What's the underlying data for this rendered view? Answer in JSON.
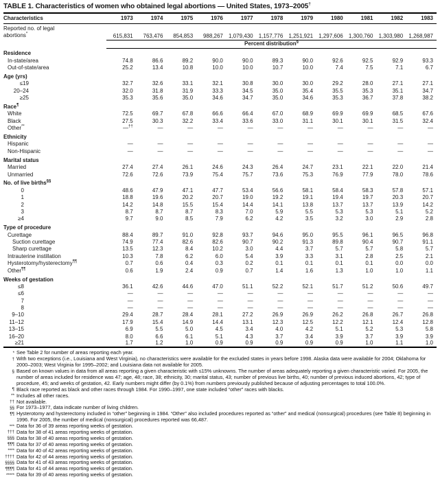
{
  "title": {
    "text": "TABLE 1. Characteristics of women who obtained legal abortions — United States, 1973–2005",
    "marker": "†"
  },
  "colors": {
    "background": "#ffffff",
    "text": "#1a1a1a",
    "rule": "#000000"
  },
  "table": {
    "characteristics_label": "Characteristics",
    "years": [
      "1973",
      "1974",
      "1975",
      "1976",
      "1977",
      "1978",
      "1979",
      "1980",
      "1981",
      "1982",
      "1983"
    ],
    "reported": {
      "label": "Reported no. of legal abortions",
      "marker": "*",
      "values": [
        "615,831",
        "763,476",
        "854,853",
        "988,267",
        "1,079,430",
        "1,157,776",
        "1,251,921",
        "1,297,606",
        "1,300,760",
        "1,303,980",
        "1,268,987"
      ]
    },
    "percent_header": {
      "text": "Percent distribution",
      "marker": "§"
    },
    "sections": [
      {
        "label": "Residence",
        "marker": "",
        "rows": [
          {
            "label": "In-state/area",
            "marker": "",
            "style": "l1",
            "values": [
              "74.8",
              "86.6",
              "89.2",
              "90.0",
              "90.0",
              "89.3",
              "90.0",
              "92.6",
              "92.5",
              "92.9",
              "93.3"
            ]
          },
          {
            "label": "Out-of-state/area",
            "marker": "",
            "style": "l1",
            "values": [
              "25.2",
              "13.4",
              "10.8",
              "10.0",
              "10.0",
              "10.7",
              "10.0",
              "7.4",
              "7.5",
              "7.1",
              "6.7"
            ]
          }
        ]
      },
      {
        "label": "Age (yrs)",
        "marker": "",
        "rows": [
          {
            "label": "≤19",
            "marker": "",
            "style": "r37",
            "values": [
              "32.7",
              "32.6",
              "33.1",
              "32.1",
              "30.8",
              "30.0",
              "30.0",
              "29.2",
              "28.0",
              "27.1",
              "27.1"
            ]
          },
          {
            "label": "20–24",
            "marker": "",
            "style": "r37",
            "values": [
              "32.0",
              "31.8",
              "31.9",
              "33.3",
              "34.5",
              "35.0",
              "35.4",
              "35.5",
              "35.3",
              "35.1",
              "34.7"
            ]
          },
          {
            "label": "≥25",
            "marker": "",
            "style": "r37",
            "values": [
              "35.3",
              "35.6",
              "35.0",
              "34.6",
              "34.7",
              "35.0",
              "34.6",
              "35.3",
              "36.7",
              "37.8",
              "38.2"
            ]
          }
        ]
      },
      {
        "label": "Race",
        "marker": "¶",
        "rows": [
          {
            "label": "White",
            "marker": "",
            "style": "l1",
            "values": [
              "72.5",
              "69.7",
              "67.8",
              "66.6",
              "66.4",
              "67.0",
              "68.9",
              "69.9",
              "69.9",
              "68.5",
              "67.6"
            ]
          },
          {
            "label": "Black",
            "marker": "",
            "style": "l1",
            "values": [
              "27.5",
              "30.3",
              "32.2",
              "33.4",
              "33.6",
              "33.0",
              "31.1",
              "30.1",
              "30.1",
              "31.5",
              "32.4"
            ]
          },
          {
            "label": "Other",
            "marker": "**",
            "style": "l1",
            "values": [
              "—",
              "—",
              "—",
              "—",
              "—",
              "—",
              "—",
              "—",
              "—",
              "—",
              "—"
            ],
            "value_sups": {
              "0": "††"
            }
          }
        ]
      },
      {
        "label": "Ethnicity",
        "marker": "",
        "rows": [
          {
            "label": "Hispanic",
            "marker": "",
            "style": "l1",
            "values": [
              "—",
              "—",
              "—",
              "—",
              "—",
              "—",
              "—",
              "—",
              "—",
              "—",
              "—"
            ]
          },
          {
            "label": "Non-Hispanic",
            "marker": "",
            "style": "l1",
            "values": [
              "—",
              "—",
              "—",
              "—",
              "—",
              "—",
              "—",
              "—",
              "—",
              "—",
              "—"
            ]
          }
        ]
      },
      {
        "label": "Marital status",
        "marker": "",
        "rows": [
          {
            "label": "Married",
            "marker": "",
            "style": "l1",
            "values": [
              "27.4",
              "27.4",
              "26.1",
              "24.6",
              "24.3",
              "26.4",
              "24.7",
              "23.1",
              "22.1",
              "22.0",
              "21.4"
            ]
          },
          {
            "label": "Unmarried",
            "marker": "",
            "style": "l1",
            "values": [
              "72.6",
              "72.6",
              "73.9",
              "75.4",
              "75.7",
              "73.6",
              "75.3",
              "76.9",
              "77.9",
              "78.0",
              "78.6"
            ]
          }
        ]
      },
      {
        "label": "No. of live births",
        "marker": "§§",
        "rows": [
          {
            "label": "0",
            "marker": "",
            "style": "r30",
            "values": [
              "48.6",
              "47.9",
              "47.1",
              "47.7",
              "53.4",
              "56.6",
              "58.1",
              "58.4",
              "58.3",
              "57.8",
              "57.1"
            ]
          },
          {
            "label": "1",
            "marker": "",
            "style": "r30",
            "values": [
              "18.8",
              "19.6",
              "20.2",
              "20.7",
              "19.0",
              "19.2",
              "19.1",
              "19.4",
              "19.7",
              "20.3",
              "20.7"
            ]
          },
          {
            "label": "2",
            "marker": "",
            "style": "r30",
            "values": [
              "14.2",
              "14.8",
              "15.5",
              "15.4",
              "14.4",
              "14.1",
              "13.8",
              "13.7",
              "13.7",
              "13.9",
              "14.2"
            ]
          },
          {
            "label": "3",
            "marker": "",
            "style": "r30",
            "values": [
              "8.7",
              "8.7",
              "8.7",
              "8.3",
              "7.0",
              "5.9",
              "5.5",
              "5.3",
              "5.3",
              "5.1",
              "5.2"
            ]
          },
          {
            "label": "≥4",
            "marker": "",
            "style": "r30",
            "values": [
              "9.7",
              "9.0",
              "8.5",
              "7.9",
              "6.2",
              "4.2",
              "3.5",
              "3.2",
              "3.0",
              "2.9",
              "2.8"
            ]
          }
        ]
      },
      {
        "label": "Type of procedure",
        "marker": "",
        "rows": [
          {
            "label": "Curettage",
            "marker": "",
            "style": "l1",
            "values": [
              "88.4",
              "89.7",
              "91.0",
              "92.8",
              "93.7",
              "94.6",
              "95.0",
              "95.5",
              "96.1",
              "96.5",
              "96.8"
            ]
          },
          {
            "label": "Suction curettage",
            "marker": "",
            "style": "l2",
            "values": [
              "74.9",
              "77.4",
              "82.6",
              "82.6",
              "90.7",
              "90.2",
              "91.3",
              "89.8",
              "90.4",
              "90.7",
              "91.1"
            ]
          },
          {
            "label": "Sharp curettage",
            "marker": "",
            "style": "l2",
            "values": [
              "13.5",
              "12.3",
              "8.4",
              "10.2",
              "3.0",
              "4.4",
              "3.7",
              "5.7",
              "5.7",
              "5.8",
              "5.7"
            ]
          },
          {
            "label": "Intrauterine instillation",
            "marker": "",
            "style": "l1",
            "values": [
              "10.3",
              "7.8",
              "6.2",
              "6.0",
              "5.4",
              "3.9",
              "3.3",
              "3.1",
              "2.8",
              "2.5",
              "2.1"
            ]
          },
          {
            "label": "Hysterotomy/hysterectomy",
            "marker": "¶¶",
            "style": "l1",
            "values": [
              "0.7",
              "0.6",
              "0.4",
              "0.3",
              "0.2",
              "0.1",
              "0.1",
              "0.1",
              "0.1",
              "0.0",
              "0.0"
            ]
          },
          {
            "label": "Other",
            "marker": "¶¶",
            "style": "l1",
            "values": [
              "0.6",
              "1.9",
              "2.4",
              "0.9",
              "0.7",
              "1.4",
              "1.6",
              "1.3",
              "1.0",
              "1.0",
              "1.1"
            ]
          }
        ]
      },
      {
        "label": "Weeks of gestation",
        "marker": "",
        "rows": [
          {
            "label": "≤8",
            "marker": "",
            "style": "r30",
            "values": [
              "36.1",
              "42.6",
              "44.6",
              "47.0",
              "51.1",
              "52.2",
              "52.1",
              "51.7",
              "51.2",
              "50.6",
              "49.7"
            ]
          },
          {
            "label": "≤6",
            "marker": "",
            "style": "r30",
            "values": [
              "—",
              "—",
              "—",
              "—",
              "—",
              "—",
              "—",
              "—",
              "—",
              "—",
              "—"
            ]
          },
          {
            "label": "7",
            "marker": "",
            "style": "r30",
            "values": [
              "—",
              "—",
              "—",
              "—",
              "—",
              "—",
              "—",
              "—",
              "—",
              "—",
              "—"
            ]
          },
          {
            "label": "8",
            "marker": "",
            "style": "r30",
            "values": [
              "—",
              "—",
              "—",
              "—",
              "—",
              "—",
              "—",
              "—",
              "—",
              "—",
              "—"
            ]
          },
          {
            "label": "9–10",
            "marker": "",
            "style": "r30",
            "values": [
              "29.4",
              "28.7",
              "28.4",
              "28.1",
              "27.2",
              "26.9",
              "26.9",
              "26.2",
              "26.8",
              "26.7",
              "26.8"
            ]
          },
          {
            "label": "11–12",
            "marker": "",
            "style": "r30",
            "values": [
              "17.9",
              "15.4",
              "14.9",
              "14.4",
              "13.1",
              "12.3",
              "12.5",
              "12.2",
              "12.1",
              "12.4",
              "12.8"
            ]
          },
          {
            "label": "13–15",
            "marker": "",
            "style": "r30",
            "values": [
              "6.9",
              "5.5",
              "5.0",
              "4.5",
              "3.4",
              "4.0",
              "4.2",
              "5.1",
              "5.2",
              "5.3",
              "5.8"
            ]
          },
          {
            "label": "16–20",
            "marker": "",
            "style": "r30",
            "values": [
              "8.0",
              "6.6",
              "6.1",
              "5.1",
              "4.3",
              "3.7",
              "3.4",
              "3.9",
              "3.7",
              "3.9",
              "3.9"
            ]
          },
          {
            "label": "≥21",
            "marker": "",
            "style": "r30",
            "values": [
              "1.7",
              "1.2",
              "1.0",
              "0.9",
              "0.9",
              "0.9",
              "0.9",
              "0.9",
              "1.0",
              "1.1",
              "1.0"
            ]
          }
        ]
      }
    ]
  },
  "footnotes": [
    {
      "marker": "*",
      "text": "See Table 2 for number of areas reporting each year."
    },
    {
      "marker": "†",
      "text": "With two exceptions (i.e., Louisiana and West Virginia), no characteristics were available for the excluded states in years before 1998. Alaska data were available for 2004; Oklahoma for 2000–2003; West Virginia for 1995–2002; and Louisiana data not available for 2005."
    },
    {
      "marker": "§",
      "text": "Based on known values in data from all areas reporting a given characteristic with ≤15% unknowns. The number of areas adequately reporting a given characteristic varied. For 2005, the number of areas included for residence was 47; age, 48; race, 38; ethnicity, 30; marital status, 43; number of previous live births, 40; number of previous induced abortions, 42; type of procedure, 45; and weeks of gestation, 42. Early numbers might differ (by 0.1%) from numbers previously published because of adjusting percentages to total 100.0%."
    },
    {
      "marker": "¶",
      "text": "Black race reported as black and other races through 1984. For 1990–1997, one state included “other” races with blacks."
    },
    {
      "marker": "**",
      "text": "Includes all other races."
    },
    {
      "marker": "††",
      "text": "Not available."
    },
    {
      "marker": "§§",
      "text": "For 1973–1977, data indicate number of living children."
    },
    {
      "marker": "¶¶",
      "text": "Hysterotomy and hysterectomy included in “other” beginning in 1984. “Other” also included procedures reported as “other” and medical (nonsurgical) procedures (see Table 8) beginning in 1996. For 2005, the number of medical (nonsurgical) procedures reported was 66,487."
    },
    {
      "marker": "***",
      "text": "Data for 36 of 39 areas reporting weeks of gestation."
    },
    {
      "marker": "†††",
      "text": "Data for 38 of 41 areas reporting weeks of gestation."
    },
    {
      "marker": "§§§",
      "text": "Data for 38 of 40 areas reporting weeks of gestation."
    },
    {
      "marker": "¶¶¶",
      "text": "Data for 37 of 40 areas reporting weeks of gestation."
    },
    {
      "marker": "****",
      "text": "Data for 40 of 42 areas reporting weeks of gestation."
    },
    {
      "marker": "††††",
      "text": "Data for 42 of 44 areas reporting weeks of gestation."
    },
    {
      "marker": "§§§§",
      "text": "Data for 41 of 43 areas reporting weeks of gestation."
    },
    {
      "marker": "¶¶¶¶",
      "text": "Data for 41 of 44 areas reporting weeks of gestation."
    },
    {
      "marker": "*****",
      "text": "Data for 39 of 40 areas reporting weeks of gestation."
    }
  ]
}
